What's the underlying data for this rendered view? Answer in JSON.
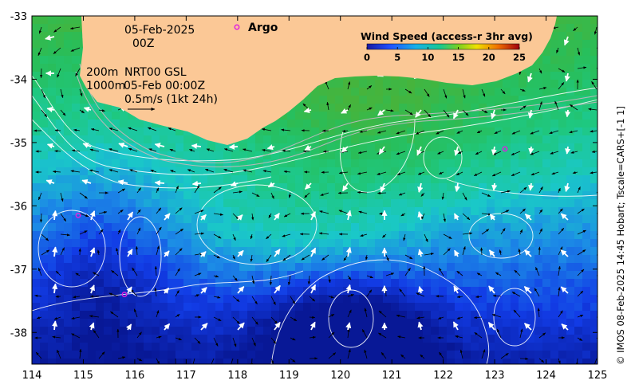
{
  "map": {
    "lon_range": [
      114,
      125
    ],
    "lat_range": [
      -38.5,
      -33
    ],
    "x_ticks": [
      "114",
      "115",
      "116",
      "117",
      "118",
      "119",
      "120",
      "121",
      "122",
      "123",
      "124",
      "125"
    ],
    "y_ticks": [
      "-33",
      "-34",
      "-35",
      "-36",
      "-37",
      "-38"
    ],
    "annotation": {
      "date": "05-Feb-2025",
      "hour": "00Z",
      "depth_200": "200m",
      "depth_1000": "1000m",
      "product": "NRT00 GSL",
      "product_time": "05-Feb 00:00Z",
      "scale": "0.5m/s (1kt 24h)"
    },
    "legend": {
      "argo_label": "Argo",
      "argo_color": "#e020e0",
      "colorbar_title": "Wind Speed (access-r 3hr avg)",
      "colorbar_ticks": [
        "0",
        "5",
        "10",
        "15",
        "20",
        "25"
      ],
      "colorbar_range": [
        0,
        25
      ]
    },
    "argo_floats": [
      {
        "lon": 114.9,
        "lat": -36.15
      },
      {
        "lon": 115.8,
        "lat": -37.4
      },
      {
        "lon": 123.2,
        "lat": -35.1
      }
    ],
    "credit": "© IMOS 08-Feb-2025 14:45 Hobart; Tscale=CARS+[-1 1]",
    "colors": {
      "land": "#fbc896",
      "ocean_deep": "#0a2cb4",
      "ocean_warm": "#22c36e"
    }
  }
}
